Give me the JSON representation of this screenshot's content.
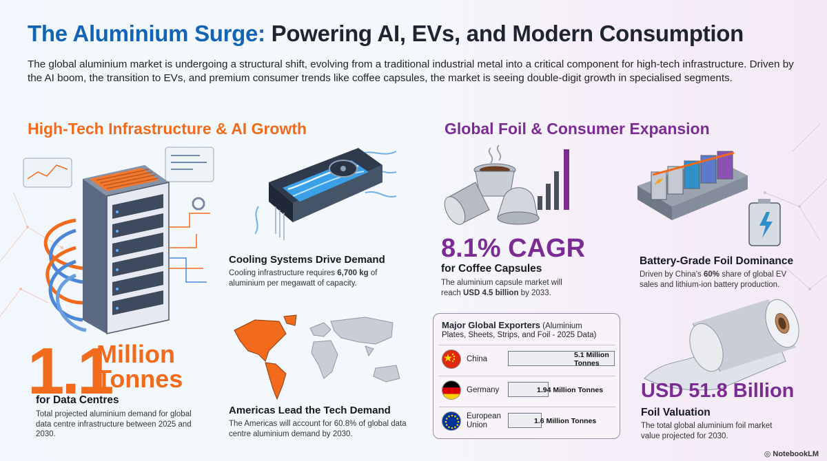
{
  "header": {
    "title_highlight": "The Aluminium Surge:",
    "title_rest": " Powering AI, EVs, and Modern Consumption",
    "intro": "The global aluminium market is undergoing a structural shift, evolving from a traditional industrial metal into a critical component for high-tech infrastructure. Driven by the AI boom, the transition to EVs, and premium consumer trends like coffee capsules, the market is seeing double-digit growth in specialised segments."
  },
  "left_section": {
    "heading": "High-Tech Infrastructure & AI Growth",
    "headline_number": "1.1",
    "headline_unit_line1": "Million",
    "headline_unit_line2": "Tonnes",
    "headline_label": "for Data Centres",
    "headline_text": "Total projected aluminium demand for global data centre infrastructure between 2025 and 2030.",
    "cooling": {
      "title": "Cooling Systems Drive Demand",
      "text_before": "Cooling infrastructure requires ",
      "text_bold": "6,700 kg",
      "text_after": " of aluminium per megawatt of capacity."
    },
    "americas": {
      "title": "Americas Lead the Tech Demand",
      "text": "The Americas will account for 60.8% of global data centre aluminium demand by 2030."
    }
  },
  "right_section": {
    "heading": "Global Foil & Consumer Expansion",
    "coffee": {
      "metric": "8.1% CAGR",
      "title": "for Coffee Capsules",
      "text_before": "The aluminium capsule market will reach ",
      "text_bold": "USD 4.5 billion",
      "text_after": " by 2033."
    },
    "battery": {
      "title": "Battery-Grade Foil Dominance",
      "text_before": "Driven by China's ",
      "text_bold": "60%",
      "text_after": " share of global EV sales and lithium-ion battery production."
    },
    "foil": {
      "metric": "USD 51.8 Billion",
      "title": "Foil Valuation",
      "text": "The total global aluminium foil market value projected for 2030."
    },
    "exporters": {
      "title": "Major Global Exporters",
      "title_note": " (Aluminium",
      "subtitle": "Plates, Sheets, Strips, and Foil - 2025 Data)",
      "rows": [
        {
          "country": "China",
          "value": 5.1,
          "label": "5.1 Million Tonnes",
          "label_l1": "5.1 Million",
          "label_l2": "Tonnes"
        },
        {
          "country": "Germany",
          "value": 1.94,
          "label": "1.94 Million Tonnes"
        },
        {
          "country_l1": "European",
          "country_l2": "Union",
          "value": 1.6,
          "label": "1.6 Million Tonnes"
        }
      ]
    }
  },
  "footer": {
    "brand": "NotebookLM"
  },
  "colors": {
    "blue": "#1464b4",
    "orange": "#f26a1b",
    "purple": "#7a2c92"
  }
}
